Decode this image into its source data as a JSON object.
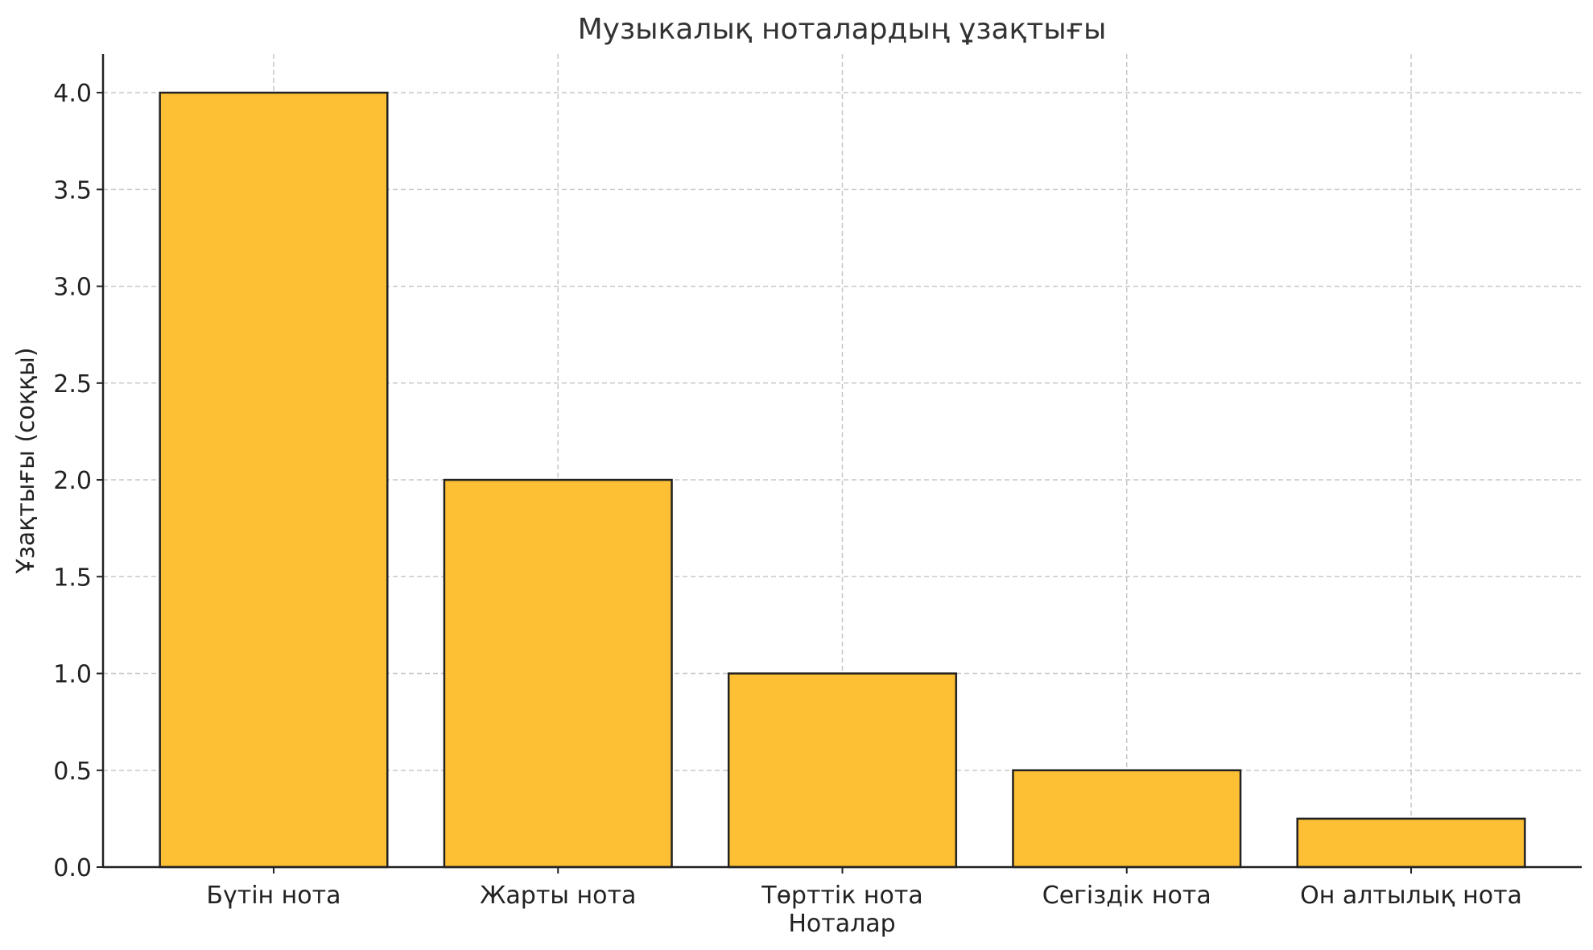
{
  "chart_data": {
    "type": "bar",
    "title": "Музыкалық ноталардың ұзақтығы",
    "xlabel": "Ноталар",
    "ylabel": "Ұзақтығы (соққы)",
    "categories": [
      "Бүтін нота",
      "Жарты нота",
      "Төрттік нота",
      "Сегіздік нота",
      "Он алтылық нота"
    ],
    "values": [
      4,
      2,
      1,
      0.5,
      0.25
    ],
    "ylim": [
      0,
      4.2
    ],
    "yticks": [
      "0.0",
      "0.5",
      "1.0",
      "1.5",
      "2.0",
      "2.5",
      "3.0",
      "3.5",
      "4.0"
    ],
    "grid": true,
    "colors": {
      "bar": "#fdbf33",
      "edge": "#222222"
    }
  }
}
